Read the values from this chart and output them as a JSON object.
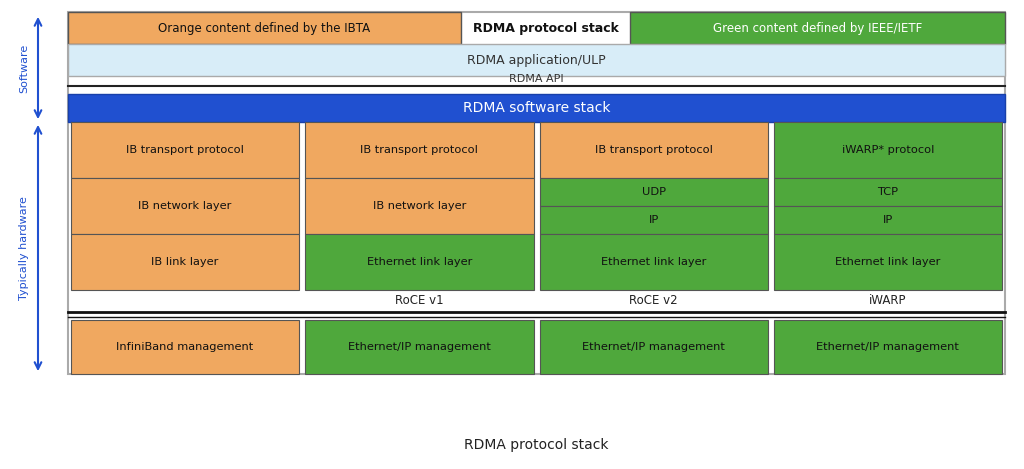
{
  "title": "RDMA protocol stack",
  "orange_color": "#F0A860",
  "green_color": "#4FA83C",
  "blue_color": "#2050D0",
  "light_blue_color": "#D8EDF8",
  "white_color": "#FFFFFF",
  "bg_color": "#FFFFFF",
  "legend_orange_text": "Orange content defined by the IBTA",
  "legend_title": "RDMA protocol stack",
  "legend_green_text": "Green content defined by IEEE/IETF",
  "rdma_app_text": "RDMA application/ULP",
  "rdma_api_text": "RDMA API",
  "rdma_stack_text": "RDMA software stack",
  "software_label": "Software",
  "hardware_label": "Typically hardware",
  "bottom_title": "RDMA protocol stack",
  "col_labels": [
    "",
    "RoCE v1",
    "RoCE v2",
    "iWARP"
  ],
  "management_row": [
    {
      "text": "InfiniBand management",
      "color": "#F0A860"
    },
    {
      "text": "Ethernet/IP management",
      "color": "#4FA83C"
    },
    {
      "text": "Ethernet/IP management",
      "color": "#4FA83C"
    },
    {
      "text": "Ethernet/IP management",
      "color": "#4FA83C"
    }
  ],
  "transport_row": [
    {
      "text": "IB transport protocol",
      "color": "#F0A860"
    },
    {
      "text": "IB transport protocol",
      "color": "#F0A860"
    },
    {
      "text": "IB transport protocol",
      "color": "#F0A860"
    },
    {
      "text": "iWARP* protocol",
      "color": "#4FA83C"
    }
  ],
  "link_row": [
    {
      "text": "IB link layer",
      "color": "#F0A860"
    },
    {
      "text": "Ethernet link layer",
      "color": "#4FA83C"
    },
    {
      "text": "Ethernet link layer",
      "color": "#4FA83C"
    },
    {
      "text": "Ethernet link layer",
      "color": "#4FA83C"
    }
  ]
}
